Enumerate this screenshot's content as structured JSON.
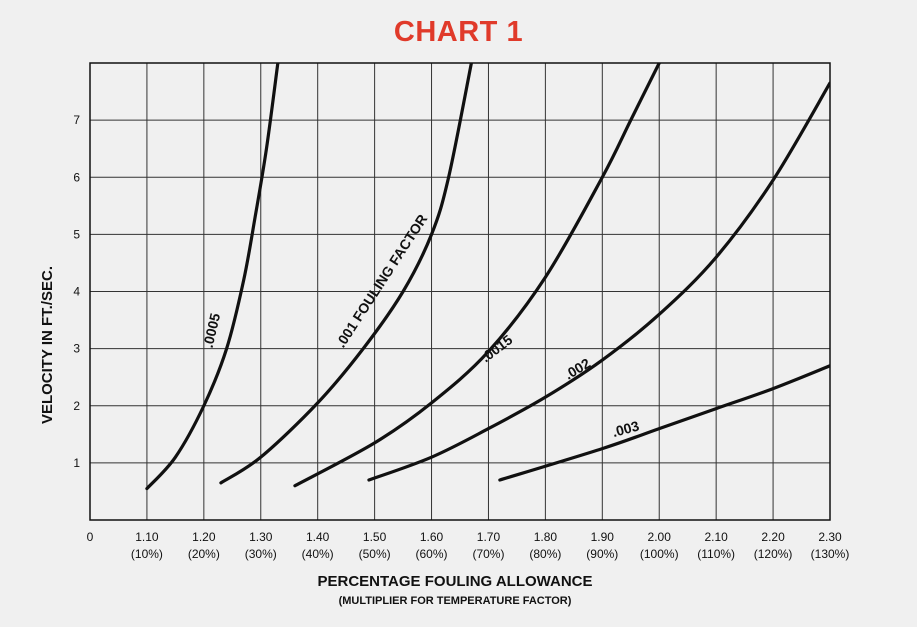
{
  "chart_data": {
    "type": "line",
    "title": "CHART 1",
    "xlabel": "PERCENTAGE FOULING ALLOWANCE",
    "xlabel_sub": "(MULTIPLIER FOR TEMPERATURE FACTOR)",
    "ylabel": "VELOCITY IN FT./SEC.",
    "xlim": [
      1.0,
      2.3
    ],
    "ylim": [
      0,
      8
    ],
    "origin_label": "0",
    "x_ticks": [
      {
        "value": 1.1,
        "label": "1.10",
        "sub": "(10%)"
      },
      {
        "value": 1.2,
        "label": "1.20",
        "sub": "(20%)"
      },
      {
        "value": 1.3,
        "label": "1.30",
        "sub": "(30%)"
      },
      {
        "value": 1.4,
        "label": "1.40",
        "sub": "(40%)"
      },
      {
        "value": 1.5,
        "label": "1.50",
        "sub": "(50%)"
      },
      {
        "value": 1.6,
        "label": "1.60",
        "sub": "(60%)"
      },
      {
        "value": 1.7,
        "label": "1.70",
        "sub": "(70%)"
      },
      {
        "value": 1.8,
        "label": "1.80",
        "sub": "(80%)"
      },
      {
        "value": 1.9,
        "label": "1.90",
        "sub": "(90%)"
      },
      {
        "value": 2.0,
        "label": "2.00",
        "sub": "(100%)"
      },
      {
        "value": 2.1,
        "label": "2.10",
        "sub": "(110%)"
      },
      {
        "value": 2.2,
        "label": "2.20",
        "sub": "(120%)"
      },
      {
        "value": 2.3,
        "label": "2.30",
        "sub": "(130%)"
      }
    ],
    "y_ticks": [
      {
        "value": 1,
        "label": "1"
      },
      {
        "value": 2,
        "label": "2"
      },
      {
        "value": 3,
        "label": "3"
      },
      {
        "value": 4,
        "label": "4"
      },
      {
        "value": 5,
        "label": "5"
      },
      {
        "value": 6,
        "label": "6"
      },
      {
        "value": 7,
        "label": "7"
      }
    ],
    "grid": true,
    "series": [
      {
        "name": ".0005",
        "points": [
          [
            1.1,
            0.55
          ],
          [
            1.15,
            1.1
          ],
          [
            1.2,
            2.0
          ],
          [
            1.24,
            3.0
          ],
          [
            1.27,
            4.2
          ],
          [
            1.29,
            5.3
          ],
          [
            1.31,
            6.5
          ],
          [
            1.33,
            8.0
          ]
        ]
      },
      {
        "name": ".001 FOULING FACTOR",
        "points": [
          [
            1.23,
            0.65
          ],
          [
            1.3,
            1.1
          ],
          [
            1.4,
            2.05
          ],
          [
            1.48,
            3.0
          ],
          [
            1.55,
            4.0
          ],
          [
            1.6,
            5.0
          ],
          [
            1.63,
            6.0
          ],
          [
            1.67,
            8.0
          ]
        ]
      },
      {
        "name": ".0015",
        "points": [
          [
            1.36,
            0.6
          ],
          [
            1.5,
            1.35
          ],
          [
            1.6,
            2.05
          ],
          [
            1.7,
            2.95
          ],
          [
            1.8,
            4.25
          ],
          [
            1.9,
            6.0
          ],
          [
            1.95,
            7.0
          ],
          [
            2.0,
            8.0
          ]
        ]
      },
      {
        "name": ".002",
        "points": [
          [
            1.49,
            0.7
          ],
          [
            1.6,
            1.1
          ],
          [
            1.7,
            1.6
          ],
          [
            1.8,
            2.15
          ],
          [
            1.9,
            2.8
          ],
          [
            2.0,
            3.6
          ],
          [
            2.1,
            4.6
          ],
          [
            2.2,
            5.95
          ],
          [
            2.3,
            7.65
          ]
        ]
      },
      {
        "name": ".003",
        "points": [
          [
            1.72,
            0.7
          ],
          [
            1.9,
            1.25
          ],
          [
            2.0,
            1.6
          ],
          [
            2.1,
            1.95
          ],
          [
            2.2,
            2.3
          ],
          [
            2.3,
            2.7
          ]
        ]
      }
    ]
  }
}
